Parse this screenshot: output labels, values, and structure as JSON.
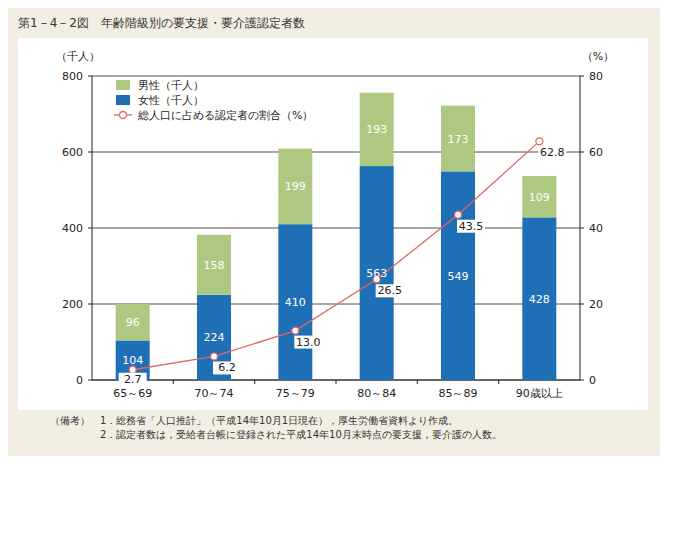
{
  "chart_data": {
    "type": "bar",
    "title": "第1－4－2図　年齢階級別の要支援・要介護認定者数",
    "y_label": "（千人）",
    "y2_label": "（%）",
    "categories": [
      "65～69",
      "70～74",
      "75～79",
      "80～84",
      "85～89",
      "90歳以上"
    ],
    "series": [
      {
        "name": "男性（千人）",
        "color": "#adc981",
        "values": [
          96,
          158,
          199,
          193,
          173,
          109
        ]
      },
      {
        "name": "女性（千人）",
        "color": "#1f6fb6",
        "values": [
          104,
          224,
          410,
          563,
          549,
          428
        ]
      },
      {
        "name": "総人口に占める認定者の割合（%）",
        "type": "line",
        "axis": "y2",
        "color": "#e2665f",
        "marker": "circle",
        "values": [
          2.7,
          6.2,
          13.0,
          26.5,
          43.5,
          62.8
        ],
        "value_labels": [
          "2.7",
          "6.2",
          "13.0",
          "26.5",
          "43.5",
          "62.8"
        ]
      }
    ],
    "ylim": [
      0,
      800
    ],
    "yticks": [
      0,
      200,
      400,
      600,
      800
    ],
    "y2lim": [
      0,
      80
    ],
    "y2ticks": [
      0,
      20,
      40,
      60,
      80
    ],
    "stacked": true,
    "data_labels": true,
    "grid": true,
    "legend": "upper left",
    "annotations": [
      "（備考）　1．総務省「人口推計」（平成14年10月1日現在），厚生労働省資料より作成。",
      "2．認定者数は，受給者台帳に登録された平成14年10月末時点の要支援，要介護の人数。"
    ]
  }
}
